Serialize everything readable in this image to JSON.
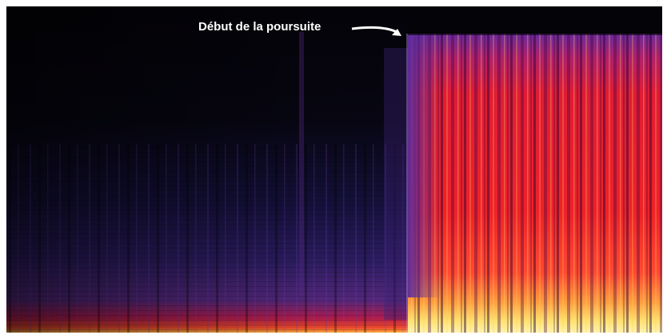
{
  "annotation": {
    "text": "Début de la poursuite"
  }
}
